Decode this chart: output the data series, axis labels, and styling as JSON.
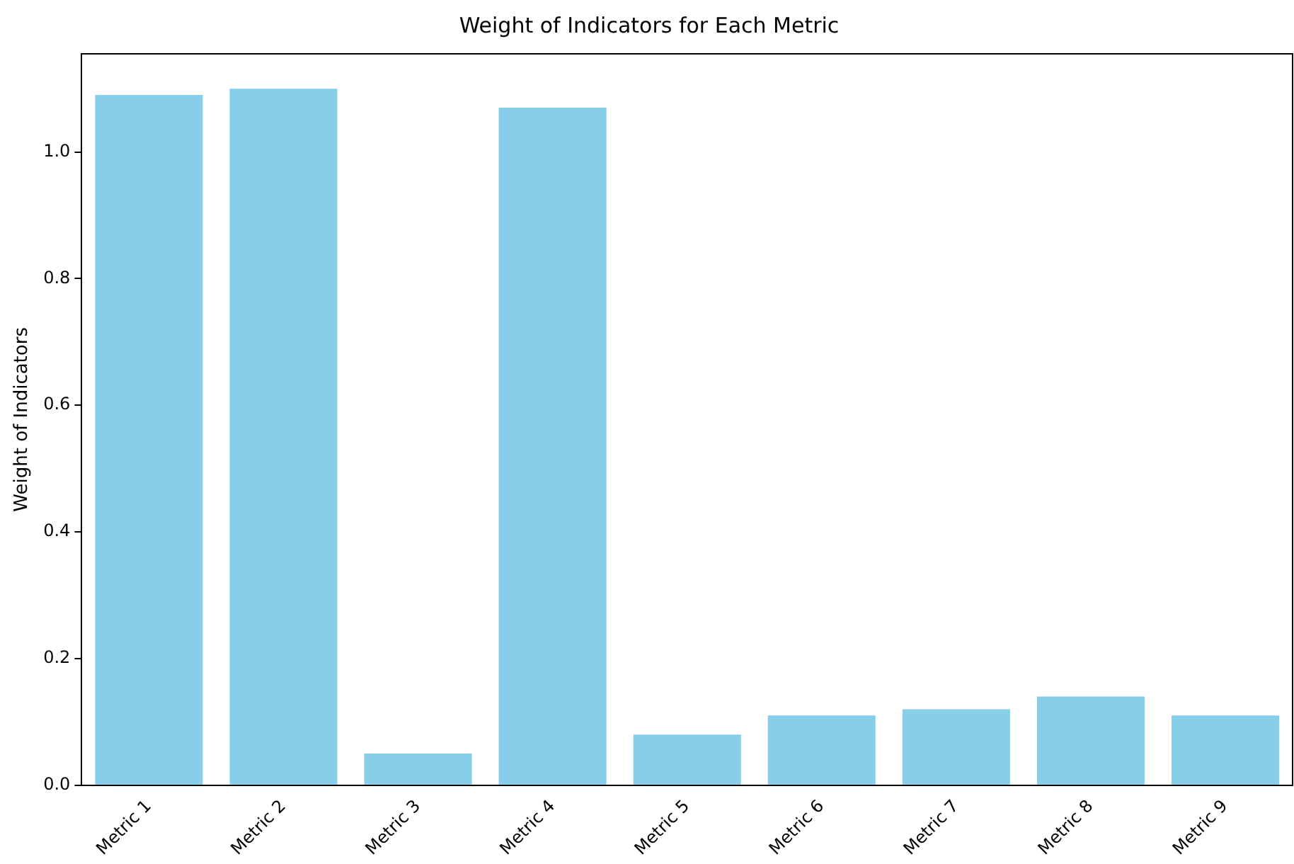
{
  "chart_data": {
    "type": "bar",
    "title": "Weight of Indicators for Each Metric",
    "ylabel": "Weight of Indicators",
    "categories": [
      "Metric 1",
      "Metric 2",
      "Metric 3",
      "Metric 4",
      "Metric 5",
      "Metric 6",
      "Metric 7",
      "Metric 8",
      "Metric 9"
    ],
    "values": [
      1.09,
      1.1,
      0.05,
      1.07,
      0.08,
      0.11,
      0.12,
      0.14,
      0.11
    ],
    "color": "#87ceeb",
    "ylim": [
      0,
      1.155
    ],
    "yticks": [
      {
        "value": 0,
        "label": "0.0"
      },
      {
        "value": 0.2,
        "label": "0.2"
      },
      {
        "value": 0.4,
        "label": "0.4"
      },
      {
        "value": 0.6,
        "label": "0.6"
      },
      {
        "value": 0.8,
        "label": "0.8"
      },
      {
        "value": 1.0,
        "label": "1.0"
      }
    ],
    "grid": false,
    "legend": false
  }
}
